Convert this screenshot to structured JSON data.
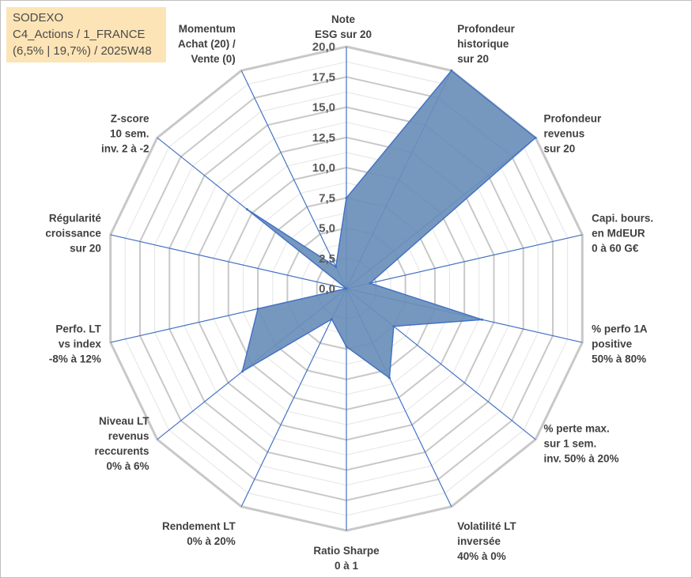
{
  "title_box": {
    "line1": "SODEXO",
    "line2": "C4_Actions / 1_FRANCE",
    "line3": "(6,5% | 19,7%) / 2025W48"
  },
  "colors": {
    "fill": "#6a8fba",
    "stroke": "#4472c4",
    "spoke": "#4472c4",
    "grid_major": "#c8c8c8",
    "grid_minor": "#e4e4e4",
    "title_bg": "#fce4b6"
  },
  "chart_data": {
    "type": "radar",
    "rmax": 20,
    "ticks": [
      "0,0",
      "2,5",
      "5,0",
      "7,5",
      "10,0",
      "12,5",
      "15,0",
      "17,5",
      "20,0"
    ],
    "categories": [
      [
        "Note",
        "ESG sur 20"
      ],
      [
        "Profondeur",
        "historique",
        "sur 20"
      ],
      [
        "Profondeur",
        "revenus",
        "sur 20"
      ],
      [
        "Capi. bours.",
        "en MdEUR",
        "0 à 60 G€"
      ],
      [
        "% perfo 1A",
        "positive",
        "50% à 80%"
      ],
      [
        "% perte max.",
        "sur 1 sem.",
        "inv. 50% à 20%"
      ],
      [
        "Volatilité LT",
        "inversée",
        "40% à 0%"
      ],
      [
        "Ratio Sharpe",
        "0 à 1"
      ],
      [
        "Rendement LT",
        "0% à 20%"
      ],
      [
        "Niveau LT",
        "revenus",
        "reccurents",
        "0% à 6%"
      ],
      [
        "Perfo. LT",
        "vs index",
        "-8% à 12%"
      ],
      [
        "Régularité",
        "croissance",
        "sur 20"
      ],
      [
        "Z-score",
        "10 sem.",
        "inv. 2 à -2"
      ],
      [
        "Momentum",
        "Achat (20) /",
        "Vente (0)"
      ]
    ],
    "values": [
      7.5,
      20.0,
      20.0,
      2.0,
      11.5,
      5.0,
      8.2,
      4.8,
      2.8,
      11.0,
      7.5,
      0.0,
      10.5,
      2.0
    ]
  }
}
